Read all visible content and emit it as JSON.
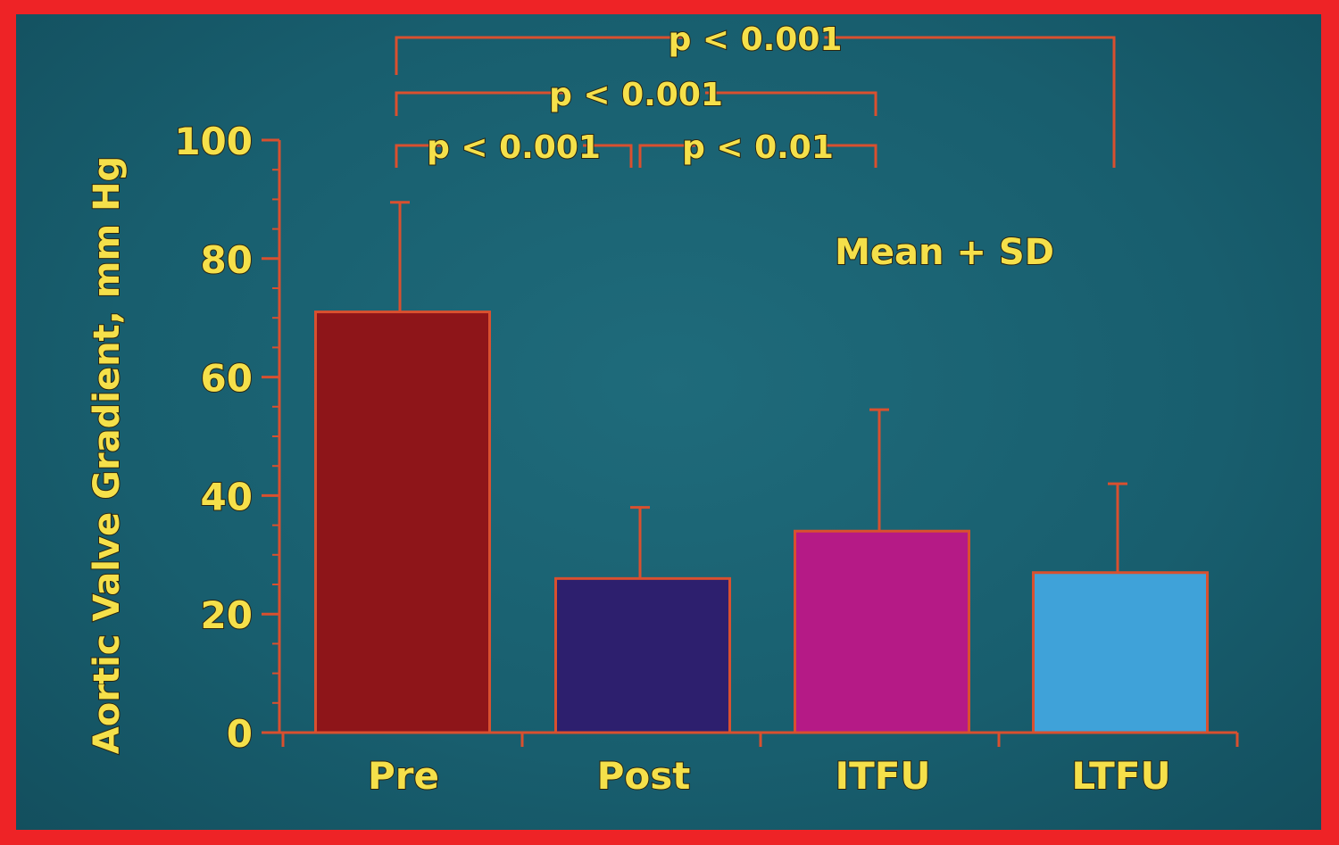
{
  "chart_data": {
    "type": "bar",
    "ylabel": "Aortic Valve Gradient, mm Hg",
    "xlabel": "",
    "categories": [
      "Pre",
      "Post",
      "ITFU",
      "LTFU"
    ],
    "values": [
      71,
      26,
      34,
      27
    ],
    "error_upper": [
      89.5,
      38,
      54.5,
      42
    ],
    "ylim": [
      0,
      100
    ],
    "yticks": [
      "0",
      "20",
      "40",
      "60",
      "80",
      "100"
    ],
    "annotation": "Mean + SD",
    "comparisons": [
      {
        "from": 0,
        "to": 1,
        "label": "p < 0.001"
      },
      {
        "from": 1,
        "to": 2,
        "label": "p < 0.01"
      },
      {
        "from": 0,
        "to": 2,
        "label": "p < 0.001"
      },
      {
        "from": 0,
        "to": 3,
        "label": "p < 0.001"
      }
    ],
    "colors": {
      "bars": [
        "#8e1519",
        "#2d1f6e",
        "#b51a86",
        "#3fa2d9"
      ],
      "axis": "#d9502f",
      "text": "#f5e04a",
      "background": "#1a6170",
      "border": "#ee2326"
    }
  }
}
